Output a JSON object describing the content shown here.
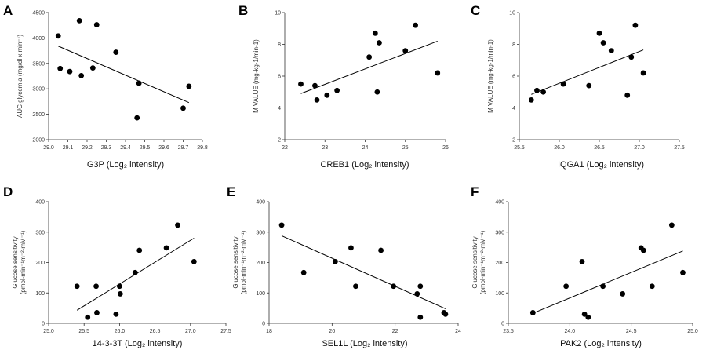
{
  "chart_data": [
    {
      "letter": "A",
      "type": "scatter",
      "xlabel": "G3P (Log₂ intensity)",
      "ylabel_lines": [
        "AUC glycemia (mg/dl x min⁻¹)"
      ],
      "xlim": [
        29.0,
        29.8
      ],
      "ylim": [
        2000,
        4500
      ],
      "xticks": [
        "29.0",
        "29.1",
        "29.2",
        "29.3",
        "29.4",
        "29.5",
        "29.6",
        "29.7",
        "29.8"
      ],
      "yticks": [
        "2000",
        "2500",
        "3000",
        "3500",
        "4000",
        "4500"
      ],
      "points": [
        [
          29.05,
          4040
        ],
        [
          29.06,
          3400
        ],
        [
          29.11,
          3340
        ],
        [
          29.16,
          4340
        ],
        [
          29.17,
          3260
        ],
        [
          29.23,
          3410
        ],
        [
          29.25,
          4260
        ],
        [
          29.35,
          3720
        ],
        [
          29.46,
          2430
        ],
        [
          29.47,
          3110
        ],
        [
          29.7,
          2620
        ],
        [
          29.73,
          3050
        ]
      ],
      "fit": [
        [
          29.05,
          3840
        ],
        [
          29.73,
          2730
        ]
      ]
    },
    {
      "letter": "B",
      "type": "scatter",
      "xlabel": "CREB1 (Log₂ intensity)",
      "ylabel_lines": [
        "M VALUE (mg·kg-1/min-1)"
      ],
      "xlim": [
        22,
        26
      ],
      "ylim": [
        2,
        10
      ],
      "xticks": [
        "22",
        "23",
        "24",
        "25",
        "26"
      ],
      "yticks": [
        "2",
        "4",
        "6",
        "8",
        "10"
      ],
      "points": [
        [
          22.4,
          5.5
        ],
        [
          22.75,
          5.4
        ],
        [
          22.8,
          4.5
        ],
        [
          23.05,
          4.8
        ],
        [
          23.3,
          5.1
        ],
        [
          24.1,
          7.2
        ],
        [
          24.25,
          8.7
        ],
        [
          24.3,
          5.0
        ],
        [
          24.35,
          8.1
        ],
        [
          25.0,
          7.6
        ],
        [
          25.25,
          9.2
        ],
        [
          25.8,
          6.2
        ]
      ],
      "fit": [
        [
          22.4,
          4.9
        ],
        [
          25.8,
          8.2
        ]
      ]
    },
    {
      "letter": "C",
      "type": "scatter",
      "xlabel": "IQGA1 (Log₂ intensity)",
      "ylabel_lines": [
        "M VALUE (mg·kg-1/min-1)"
      ],
      "xlim": [
        25.5,
        27.5
      ],
      "ylim": [
        2,
        10
      ],
      "xticks": [
        "25.5",
        "26.0",
        "26.5",
        "27.0",
        "27.5"
      ],
      "yticks": [
        "2",
        "4",
        "6",
        "8",
        "10"
      ],
      "points": [
        [
          25.65,
          4.5
        ],
        [
          25.72,
          5.1
        ],
        [
          25.8,
          5.0
        ],
        [
          26.05,
          5.5
        ],
        [
          26.37,
          5.4
        ],
        [
          26.5,
          8.7
        ],
        [
          26.55,
          8.1
        ],
        [
          26.65,
          7.6
        ],
        [
          26.85,
          4.8
        ],
        [
          26.9,
          7.2
        ],
        [
          26.95,
          9.2
        ],
        [
          27.05,
          6.2
        ]
      ],
      "fit": [
        [
          25.65,
          4.85
        ],
        [
          27.05,
          7.65
        ]
      ]
    },
    {
      "letter": "D",
      "type": "scatter",
      "xlabel": "14-3-3T (Log₂ intensity)",
      "ylabel_lines": [
        "Glucose sensitivity",
        "(pmol·min⁻¹m⁻²·mM⁻¹)"
      ],
      "xlim": [
        25.0,
        27.5
      ],
      "ylim": [
        0,
        400
      ],
      "xticks": [
        "25.0",
        "25.5",
        "26.0",
        "26.5",
        "27.0",
        "27.5"
      ],
      "yticks": [
        "0",
        "100",
        "200",
        "300",
        "400"
      ],
      "points": [
        [
          25.4,
          122
        ],
        [
          25.55,
          20
        ],
        [
          25.67,
          122
        ],
        [
          25.68,
          35
        ],
        [
          25.95,
          30
        ],
        [
          26.0,
          122
        ],
        [
          26.01,
          97
        ],
        [
          26.22,
          167
        ],
        [
          26.28,
          240
        ],
        [
          26.66,
          248
        ],
        [
          26.82,
          323
        ],
        [
          27.05,
          203
        ]
      ],
      "fit": [
        [
          25.4,
          43
        ],
        [
          27.05,
          280
        ]
      ]
    },
    {
      "letter": "E",
      "type": "scatter",
      "xlabel": "SEL1L (Log₂ intensity)",
      "ylabel_lines": [
        "Glucose sensitivity",
        "(pmol·min⁻¹m⁻²·mM⁻¹)"
      ],
      "xlim": [
        18,
        24
      ],
      "ylim": [
        0,
        400
      ],
      "xticks": [
        "18",
        "20",
        "22",
        "24"
      ],
      "yticks": [
        "0",
        "100",
        "200",
        "300",
        "400"
      ],
      "points": [
        [
          18.4,
          323
        ],
        [
          19.1,
          167
        ],
        [
          20.1,
          203
        ],
        [
          20.6,
          248
        ],
        [
          20.75,
          122
        ],
        [
          21.55,
          240
        ],
        [
          21.95,
          122
        ],
        [
          22.7,
          97
        ],
        [
          22.8,
          122
        ],
        [
          22.8,
          20
        ],
        [
          23.55,
          35
        ],
        [
          23.6,
          30
        ]
      ],
      "fit": [
        [
          18.4,
          288
        ],
        [
          23.6,
          48
        ]
      ]
    },
    {
      "letter": "F",
      "type": "scatter",
      "xlabel": "PAK2 (Log₂ intensity)",
      "ylabel_lines": [
        "Glucose sensitivity",
        "(pmol·min⁻¹m⁻²·mM⁻¹)"
      ],
      "xlim": [
        23.5,
        25.0
      ],
      "ylim": [
        0,
        400
      ],
      "xticks": [
        "23.5",
        "24.0",
        "24.5",
        "25.0"
      ],
      "yticks": [
        "0",
        "100",
        "200",
        "300",
        "400"
      ],
      "points": [
        [
          23.7,
          35
        ],
        [
          23.97,
          122
        ],
        [
          24.1,
          203
        ],
        [
          24.12,
          30
        ],
        [
          24.15,
          20
        ],
        [
          24.27,
          122
        ],
        [
          24.43,
          97
        ],
        [
          24.58,
          248
        ],
        [
          24.6,
          240
        ],
        [
          24.67,
          122
        ],
        [
          24.83,
          323
        ],
        [
          24.92,
          167
        ]
      ],
      "fit": [
        [
          23.7,
          33
        ],
        [
          24.92,
          238
        ]
      ]
    }
  ]
}
